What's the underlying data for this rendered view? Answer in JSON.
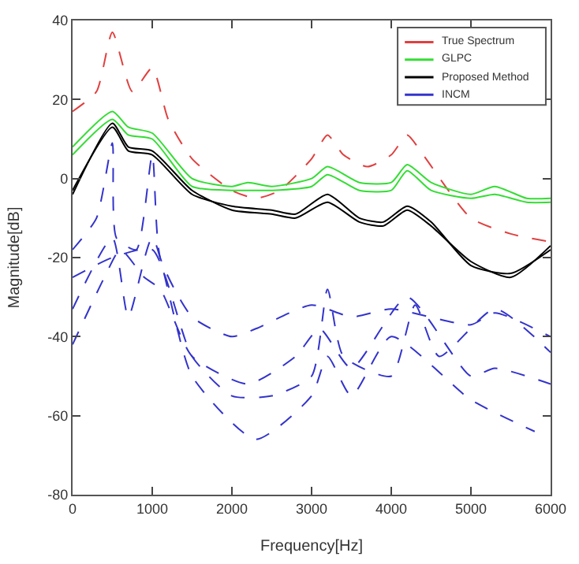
{
  "chart_data": {
    "type": "line",
    "xlabel": "Frequency[Hz]",
    "ylabel": "Magnitude[dB]",
    "xlim": [
      0,
      6000
    ],
    "xticks": [
      0,
      1000,
      2000,
      3000,
      4000,
      5000,
      6000
    ],
    "ylim": [
      -80,
      40
    ],
    "yticks": [
      -80,
      -60,
      -40,
      -20,
      0,
      20,
      40
    ],
    "legend": "top right",
    "marker": "none",
    "series": [
      {
        "name": "True Spectrum",
        "color": "#e04040",
        "line_style": "dashed",
        "x": [
          0,
          300,
          500,
          750,
          1000,
          1200,
          1500,
          2000,
          2300,
          2600,
          3000,
          3200,
          3400,
          3700,
          4000,
          4200,
          4400,
          5000,
          5500,
          6000
        ],
        "values": [
          17,
          22,
          37,
          22,
          28,
          15,
          5,
          -3,
          -5,
          -3,
          5,
          11,
          6,
          3,
          6,
          11,
          6,
          -10,
          -14,
          -16
        ]
      },
      {
        "name": "GLPC",
        "color": "#33dd33",
        "line_style": "solid",
        "x": [
          0,
          500,
          700,
          1000,
          1500,
          2000,
          2200,
          2500,
          3000,
          3200,
          3600,
          4000,
          4200,
          4500,
          5000,
          5300,
          5700,
          6000
        ],
        "values": [
          8,
          17,
          13,
          11.5,
          0,
          -2,
          -1,
          -2,
          0,
          3,
          -1,
          -1,
          3.5,
          -1,
          -4,
          -2,
          -5,
          -5
        ]
      },
      {
        "color": "#33dd33",
        "line_style": "solid",
        "x": [
          0,
          500,
          700,
          1000,
          1500,
          2000,
          2200,
          2500,
          3000,
          3200,
          3600,
          4000,
          4200,
          4500,
          5000,
          5300,
          5700,
          6000
        ],
        "values": [
          6,
          15,
          11,
          10,
          -2,
          -3,
          -3,
          -3,
          -2,
          1,
          -3,
          -3,
          2,
          -3,
          -5,
          -4,
          -6,
          -6
        ]
      },
      {
        "name": "Proposed Method",
        "color": "#000000",
        "line_style": "solid",
        "x": [
          0,
          500,
          700,
          1000,
          1500,
          2000,
          2500,
          2800,
          3200,
          3600,
          3900,
          4200,
          4500,
          5000,
          5500,
          6000
        ],
        "values": [
          -4,
          14,
          8,
          7,
          -3,
          -8,
          -9,
          -10,
          -6,
          -11,
          -12,
          -8,
          -12,
          -21,
          -25,
          -17
        ]
      },
      {
        "color": "#000000",
        "line_style": "solid",
        "x": [
          0,
          500,
          700,
          1000,
          1500,
          2000,
          2500,
          2800,
          3200,
          3600,
          3900,
          4200,
          4500,
          5000,
          5500,
          6000
        ],
        "values": [
          -3,
          13,
          7,
          6,
          -4,
          -7,
          -8,
          -9,
          -4,
          -10,
          -11,
          -7,
          -11,
          -22,
          -24,
          -18
        ]
      },
      {
        "name": "INCM",
        "color": "#3333cc",
        "line_style": "dashed",
        "x": [
          0,
          300,
          500,
          550,
          800,
          1000,
          1100,
          1500,
          2000,
          2300,
          3000,
          3500,
          4000,
          5000,
          5300,
          6000
        ],
        "values": [
          -18,
          -10,
          9,
          -15,
          -18,
          6,
          -20,
          -35,
          -40,
          -38,
          -32,
          -35,
          -33,
          -37,
          -34,
          -40
        ]
      },
      {
        "color": "#3333cc",
        "line_style": "dashed",
        "x": [
          0,
          500,
          700,
          1000,
          1500,
          2300,
          3000,
          3200,
          3500,
          4000,
          5000,
          5800
        ],
        "values": [
          -33,
          -15,
          -35,
          -15,
          -50,
          -66,
          -55,
          -45,
          -55,
          -40,
          -56,
          -64
        ]
      },
      {
        "color": "#3333cc",
        "line_style": "dashed",
        "x": [
          0,
          500,
          1000,
          1500,
          2000,
          2500,
          3000,
          3200,
          3400,
          4000,
          4300,
          4600,
          5300,
          6000
        ],
        "values": [
          -25,
          -20,
          -18,
          -45,
          -55,
          -55,
          -50,
          -28,
          -45,
          -50,
          -32,
          -45,
          -33,
          -44
        ]
      },
      {
        "color": "#3333cc",
        "line_style": "dashed",
        "x": [
          0,
          400,
          600,
          900,
          1100,
          1500,
          2200,
          2800,
          3100,
          3500,
          4200,
          5000,
          5300,
          6000
        ],
        "values": [
          -42,
          -25,
          -18,
          -25,
          -28,
          -45,
          -52,
          -45,
          -38,
          -48,
          -30,
          -50,
          -48,
          -52
        ]
      }
    ]
  }
}
